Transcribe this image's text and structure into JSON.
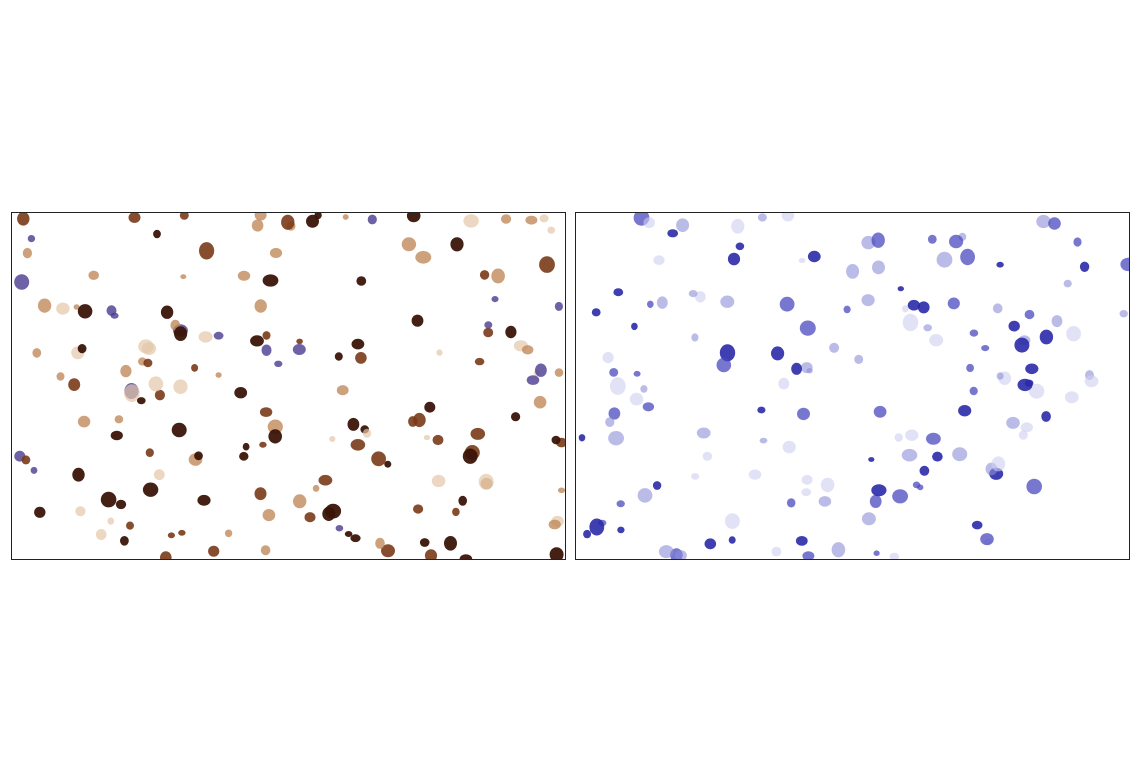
{
  "panels": [
    {
      "id": "left",
      "stain": "brown",
      "colors": {
        "dark": "#3a1408",
        "mid": "#7a3a18",
        "light": "#c08a5a",
        "faint": "#e3c6a8",
        "counterstain": "#4a3a90"
      }
    },
    {
      "id": "right",
      "stain": "blue",
      "colors": {
        "dark": "#2a2aa8",
        "mid": "#4a4ac0",
        "light": "#8e8ed8",
        "faint": "#cfcff0"
      }
    }
  ]
}
